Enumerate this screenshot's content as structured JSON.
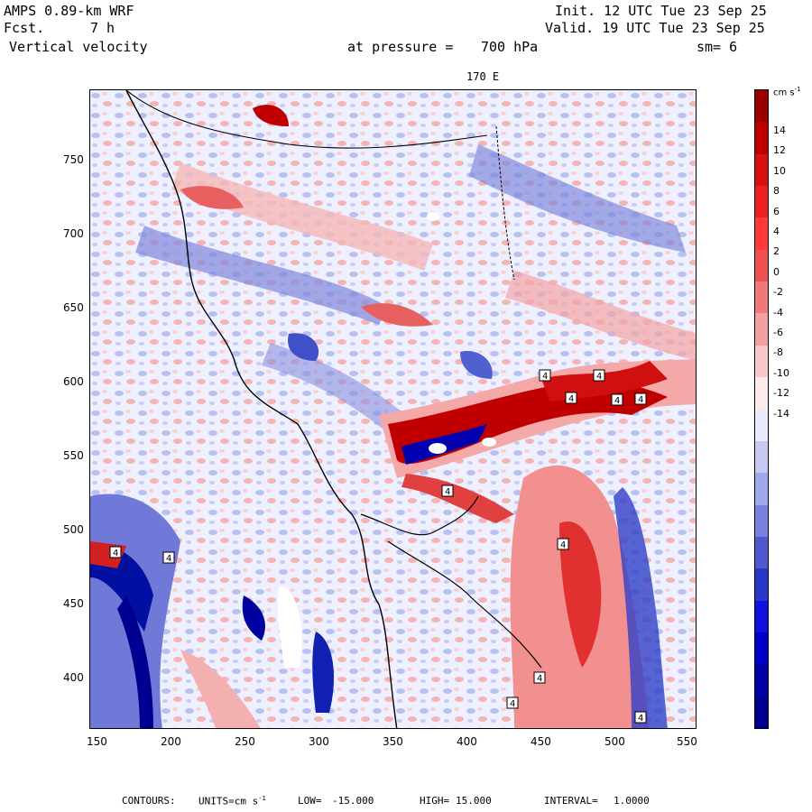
{
  "header": {
    "model": "AMPS 0.89-km WRF",
    "fcst_label": "Fcst.",
    "fcst_value": "7 h",
    "field": "Vertical velocity",
    "init": "Init. 12 UTC Tue 23 Sep 25",
    "valid": "Valid. 19 UTC Tue 23 Sep 25",
    "pressure_label": "at pressure =",
    "pressure_value": "700 hPa",
    "smoothing": "sm= 6"
  },
  "map": {
    "meridian_label": "170 E",
    "x_ticks": [
      "150",
      "200",
      "250",
      "300",
      "350",
      "400",
      "450",
      "500",
      "550"
    ],
    "y_ticks": [
      "750",
      "700",
      "650",
      "600",
      "550",
      "500",
      "450",
      "400"
    ],
    "contour_label": "4"
  },
  "colorbar": {
    "units_label": "cm s",
    "units_exp": "-1",
    "labels": [
      "14",
      "12",
      "10",
      "8",
      "6",
      "4",
      "2",
      "0",
      "-2",
      "-4",
      "-6",
      "-8",
      "-10",
      "-12",
      "-14"
    ],
    "colors": [
      "#9b0000",
      "#c00000",
      "#d81010",
      "#ee2020",
      "#ff3838",
      "#f05050",
      "#f07878",
      "#f4a0a0",
      "#f8c8c8",
      "#fdeaea",
      "#eaeaff",
      "#c8c8f4",
      "#a0a8ee",
      "#7880e0",
      "#5058d0",
      "#2838c8",
      "#1010e0",
      "#0000c8",
      "#0000a8",
      "#000090"
    ]
  },
  "footer": {
    "contours_label": "CONTOURS:",
    "units_label": "UNITS=cm s",
    "units_exp": "-1",
    "low_label": "LOW=",
    "low_value": "-15.000",
    "high_label": "HIGH=",
    "high_value": "15.000",
    "interval_label": "INTERVAL=",
    "interval_value": "1.0000"
  }
}
